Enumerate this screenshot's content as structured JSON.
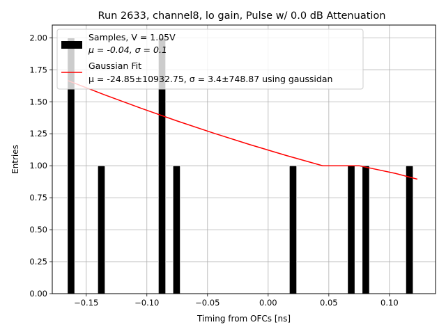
{
  "chart_data": {
    "type": "bar",
    "title": "Run 2633, channel8, lo gain, Pulse w/ 0.0 dB Attenuation",
    "xlabel": "Timing from OFCs [ns]",
    "ylabel": "Entries",
    "xlim": [
      -0.178,
      0.138
    ],
    "ylim": [
      0,
      2.1
    ],
    "xticks": [
      -0.15,
      -0.1,
      -0.05,
      0.0,
      0.05,
      0.1
    ],
    "xtick_labels": [
      "−0.15",
      "−0.10",
      "−0.05",
      "0.00",
      "0.05",
      "0.10"
    ],
    "yticks": [
      0,
      0.25,
      0.5,
      0.75,
      1.0,
      1.25,
      1.5,
      1.75,
      2.0
    ],
    "ytick_labels": [
      "0.00",
      "0.25",
      "0.50",
      "0.75",
      "1.00",
      "1.25",
      "1.50",
      "1.75",
      "2.00"
    ],
    "grid": true,
    "legend_position": "top-left",
    "bar_width": 0.006,
    "bars": [
      {
        "x": -0.1625,
        "value": 2
      },
      {
        "x": -0.1375,
        "value": 1
      },
      {
        "x": -0.0875,
        "value": 2
      },
      {
        "x": -0.0755,
        "value": 1
      },
      {
        "x": 0.0205,
        "value": 1
      },
      {
        "x": 0.0685,
        "value": 1
      },
      {
        "x": 0.0805,
        "value": 1
      },
      {
        "x": 0.1165,
        "value": 1
      }
    ],
    "fit_curve": {
      "name": "Gaussian Fit",
      "x": [
        -0.165,
        -0.135,
        -0.105,
        -0.075,
        -0.045,
        -0.015,
        0.015,
        0.045,
        0.075,
        0.105,
        0.123
      ],
      "y": [
        1.665,
        1.555,
        1.45,
        1.35,
        1.255,
        1.165,
        1.08,
        1.0,
        1.0,
        0.94,
        0.895
      ],
      "color": "#ff0000"
    },
    "series": [
      {
        "name": "Samples, V = 1.05V",
        "extra": "μ = -0.04, σ = 0.1",
        "color": "#000000"
      },
      {
        "name": "Gaussian Fit",
        "extra": "μ = -24.85±10932.75, σ = 3.4±748.87 using gaussidan",
        "color": "#ff0000"
      }
    ]
  }
}
